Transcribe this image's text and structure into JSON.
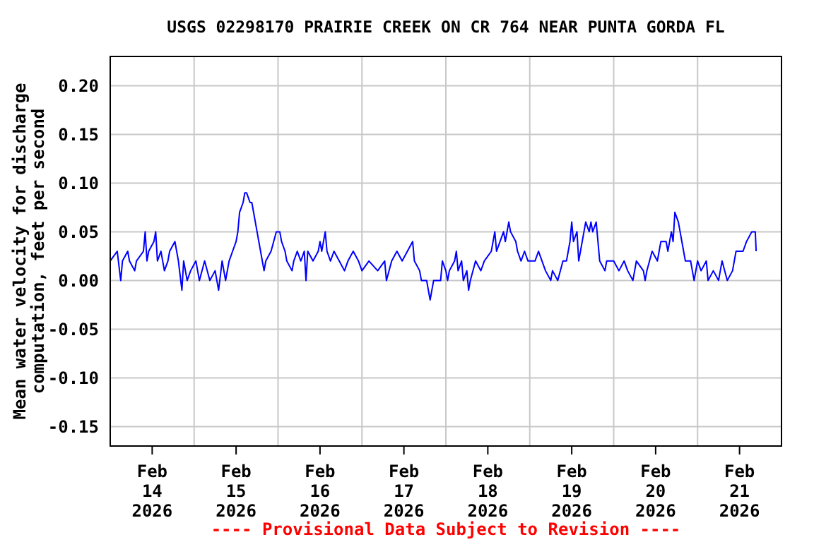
{
  "chart_data": {
    "type": "line",
    "title": "USGS 02298170 PRAIRIE CREEK ON CR 764 NEAR PUNTA GORDA FL",
    "ylabel": "Mean water velocity for discharge\ncomputation, feet per second",
    "annotations": [
      "---- Provisional Data Subject to Revision ----"
    ],
    "grid": true,
    "xlim": [
      "2026-02-13T12:00",
      "2026-02-21T12:00"
    ],
    "xticks": [
      {
        "value": "2026-02-14",
        "label": "Feb\n14\n2026"
      },
      {
        "value": "2026-02-15",
        "label": "Feb\n15\n2026"
      },
      {
        "value": "2026-02-16",
        "label": "Feb\n16\n2026"
      },
      {
        "value": "2026-02-17",
        "label": "Feb\n17\n2026"
      },
      {
        "value": "2026-02-18",
        "label": "Feb\n18\n2026"
      },
      {
        "value": "2026-02-19",
        "label": "Feb\n19\n2026"
      },
      {
        "value": "2026-02-20",
        "label": "Feb\n20\n2026"
      },
      {
        "value": "2026-02-21",
        "label": "Feb\n21\n2026"
      },
      {
        "value": "2026-02-14T12:00",
        "label": null
      },
      {
        "value": "2026-02-15T12:00",
        "label": null
      },
      {
        "value": "2026-02-16T12:00",
        "label": null
      },
      {
        "value": "2026-02-17T12:00",
        "label": null
      },
      {
        "value": "2026-02-18T12:00",
        "label": null
      },
      {
        "value": "2026-02-19T12:00",
        "label": null
      },
      {
        "value": "2026-02-20T12:00",
        "label": null
      }
    ],
    "ylim": [
      -0.17,
      0.23
    ],
    "yticks": [
      {
        "value": -0.15,
        "label": "-0.15"
      },
      {
        "value": -0.1,
        "label": "-0.10"
      },
      {
        "value": -0.05,
        "label": "-0.05"
      },
      {
        "value": 0,
        "label": "0.00"
      },
      {
        "value": 0.05,
        "label": "0.05"
      },
      {
        "value": 0.1,
        "label": "0.10"
      },
      {
        "value": 0.15,
        "label": "0.15"
      },
      {
        "value": 0.2,
        "label": "0.20"
      }
    ],
    "series": [
      {
        "color": "#0000ff",
        "x": [
          "2026-02-13T12:00",
          "2026-02-13T14:00",
          "2026-02-13T15:00",
          "2026-02-13T15:30",
          "2026-02-13T17:00",
          "2026-02-13T17:30",
          "2026-02-13T19:00",
          "2026-02-13T19:30",
          "2026-02-13T21:30",
          "2026-02-13T22:00",
          "2026-02-13T22:30",
          "2026-02-13T23:00",
          "2026-02-14T00:30",
          "2026-02-14T01:00",
          "2026-02-14T01:30",
          "2026-02-14T02:30",
          "2026-02-14T03:30",
          "2026-02-14T04:30",
          "2026-02-14T05:00",
          "2026-02-14T06:30",
          "2026-02-14T07:00",
          "2026-02-14T07:30",
          "2026-02-14T08:30",
          "2026-02-14T09:00",
          "2026-02-14T10:00",
          "2026-02-14T11:00",
          "2026-02-14T12:30",
          "2026-02-14T13:30",
          "2026-02-14T15:00",
          "2026-02-14T16:30",
          "2026-02-14T18:00",
          "2026-02-14T19:00",
          "2026-02-14T20:00",
          "2026-02-14T21:00",
          "2026-02-14T22:00",
          "2026-02-14T23:00",
          "2026-02-15T00:00",
          "2026-02-15T00:30",
          "2026-02-15T01:00",
          "2026-02-15T02:00",
          "2026-02-15T02:30",
          "2026-02-15T03:00",
          "2026-02-15T04:00",
          "2026-02-15T04:30",
          "2026-02-15T05:00",
          "2026-02-15T06:00",
          "2026-02-15T06:30",
          "2026-02-15T07:00",
          "2026-02-15T08:00",
          "2026-02-15T08:30",
          "2026-02-15T10:00",
          "2026-02-15T11:30",
          "2026-02-15T12:30",
          "2026-02-15T13:00",
          "2026-02-15T14:00",
          "2026-02-15T14:30",
          "2026-02-15T16:00",
          "2026-02-15T16:30",
          "2026-02-15T17:30",
          "2026-02-15T18:30",
          "2026-02-15T19:30",
          "2026-02-15T20:00",
          "2026-02-15T20:30",
          "2026-02-15T22:00",
          "2026-02-15T23:30",
          "2026-02-16T00:00",
          "2026-02-16T00:30",
          "2026-02-16T01:30",
          "2026-02-16T02:00",
          "2026-02-16T03:00",
          "2026-02-16T04:00",
          "2026-02-16T05:30",
          "2026-02-16T07:00",
          "2026-02-16T08:00",
          "2026-02-16T09:30",
          "2026-02-16T11:00",
          "2026-02-16T12:00",
          "2026-02-16T14:00",
          "2026-02-16T16:30",
          "2026-02-16T18:30",
          "2026-02-16T19:00",
          "2026-02-16T20:30",
          "2026-02-16T22:00",
          "2026-02-16T23:30",
          "2026-02-17T01:00",
          "2026-02-17T02:30",
          "2026-02-17T03:00",
          "2026-02-17T04:30",
          "2026-02-17T05:00",
          "2026-02-17T06:30",
          "2026-02-17T07:00",
          "2026-02-17T07:30",
          "2026-02-17T08:30",
          "2026-02-17T10:30",
          "2026-02-17T11:00",
          "2026-02-17T12:00",
          "2026-02-17T12:30",
          "2026-02-17T13:00",
          "2026-02-17T14:30",
          "2026-02-17T15:00",
          "2026-02-17T15:30",
          "2026-02-17T16:30",
          "2026-02-17T17:00",
          "2026-02-17T18:00",
          "2026-02-17T18:30",
          "2026-02-17T19:00",
          "2026-02-17T20:30",
          "2026-02-17T22:00",
          "2026-02-17T23:00",
          "2026-02-18T01:00",
          "2026-02-18T02:00",
          "2026-02-18T02:30",
          "2026-02-18T03:30",
          "2026-02-18T04:30",
          "2026-02-18T05:00",
          "2026-02-18T06:00",
          "2026-02-18T06:30",
          "2026-02-18T08:00",
          "2026-02-18T08:30",
          "2026-02-18T09:30",
          "2026-02-18T10:30",
          "2026-02-18T11:30",
          "2026-02-18T13:30",
          "2026-02-18T14:30",
          "2026-02-18T15:30",
          "2026-02-18T16:30",
          "2026-02-18T18:00",
          "2026-02-18T18:30",
          "2026-02-18T20:00",
          "2026-02-18T21:30",
          "2026-02-18T22:30",
          "2026-02-18T23:30",
          "2026-02-19T00:00",
          "2026-02-19T00:30",
          "2026-02-19T01:30",
          "2026-02-19T02:00",
          "2026-02-19T03:00",
          "2026-02-19T03:30",
          "2026-02-19T04:00",
          "2026-02-19T05:00",
          "2026-02-19T05:30",
          "2026-02-19T06:00",
          "2026-02-19T07:00",
          "2026-02-19T07:30",
          "2026-02-19T08:00",
          "2026-02-19T09:30",
          "2026-02-19T10:00",
          "2026-02-19T12:00",
          "2026-02-19T13:30",
          "2026-02-19T15:00",
          "2026-02-19T16:00",
          "2026-02-19T17:30",
          "2026-02-19T18:30",
          "2026-02-19T20:30",
          "2026-02-19T21:00",
          "2026-02-19T21:30",
          "2026-02-19T23:00",
          "2026-02-20T00:30",
          "2026-02-20T01:00",
          "2026-02-20T01:30",
          "2026-02-20T03:00",
          "2026-02-20T03:30",
          "2026-02-20T04:30",
          "2026-02-20T05:00",
          "2026-02-20T05:30",
          "2026-02-20T06:30",
          "2026-02-20T07:00",
          "2026-02-20T07:30",
          "2026-02-20T08:30",
          "2026-02-20T10:00",
          "2026-02-20T10:30",
          "2026-02-20T11:00",
          "2026-02-20T12:00",
          "2026-02-20T13:00",
          "2026-02-20T14:30",
          "2026-02-20T15:00",
          "2026-02-20T16:30",
          "2026-02-20T18:00",
          "2026-02-20T19:00",
          "2026-02-20T20:30",
          "2026-02-20T22:00",
          "2026-02-20T22:30",
          "2026-02-20T23:00",
          "2026-02-21T01:00",
          "2026-02-21T02:00",
          "2026-02-21T03:30",
          "2026-02-21T04:30",
          "2026-02-21T04:45"
        ],
        "values": [
          0.02,
          0.03,
          0.0,
          0.02,
          0.03,
          0.02,
          0.01,
          0.02,
          0.03,
          0.05,
          0.02,
          0.03,
          0.04,
          0.05,
          0.02,
          0.03,
          0.01,
          0.02,
          0.03,
          0.04,
          0.03,
          0.02,
          -0.01,
          0.02,
          0.0,
          0.01,
          0.02,
          0.0,
          0.02,
          0.0,
          0.01,
          -0.01,
          0.02,
          0.0,
          0.02,
          0.03,
          0.04,
          0.05,
          0.07,
          0.08,
          0.09,
          0.09,
          0.08,
          0.08,
          0.07,
          0.05,
          0.04,
          0.03,
          0.01,
          0.02,
          0.03,
          0.05,
          0.05,
          0.04,
          0.03,
          0.02,
          0.01,
          0.02,
          0.03,
          0.02,
          0.03,
          0.0,
          0.03,
          0.02,
          0.03,
          0.04,
          0.03,
          0.05,
          0.03,
          0.02,
          0.03,
          0.02,
          0.01,
          0.02,
          0.03,
          0.02,
          0.01,
          0.02,
          0.01,
          0.02,
          0.0,
          0.02,
          0.03,
          0.02,
          0.03,
          0.04,
          0.02,
          0.01,
          0.0,
          0.0,
          -0.01,
          -0.02,
          0.0,
          0.0,
          0.02,
          0.01,
          0.0,
          0.01,
          0.02,
          0.03,
          0.01,
          0.02,
          0.0,
          0.01,
          -0.01,
          0.0,
          0.02,
          0.01,
          0.02,
          0.03,
          0.05,
          0.03,
          0.04,
          0.05,
          0.04,
          0.06,
          0.05,
          0.04,
          0.03,
          0.02,
          0.03,
          0.02,
          0.02,
          0.03,
          0.02,
          0.01,
          0.0,
          0.01,
          0.0,
          0.02,
          0.02,
          0.04,
          0.06,
          0.04,
          0.05,
          0.02,
          0.04,
          0.05,
          0.06,
          0.05,
          0.06,
          0.05,
          0.06,
          0.04,
          0.02,
          0.01,
          0.02,
          0.02,
          0.01,
          0.02,
          0.01,
          0.0,
          0.02,
          0.01,
          0.0,
          0.01,
          0.03,
          0.02,
          0.03,
          0.04,
          0.04,
          0.03,
          0.05,
          0.04,
          0.07,
          0.06,
          0.05,
          0.04,
          0.02,
          0.02,
          0.01,
          0.0,
          0.02,
          0.01,
          0.02,
          0.0,
          0.01,
          0.0,
          0.02,
          0.0,
          0.01,
          0.02,
          0.03,
          0.03,
          0.04,
          0.05,
          0.05,
          0.03
        ]
      }
    ]
  }
}
